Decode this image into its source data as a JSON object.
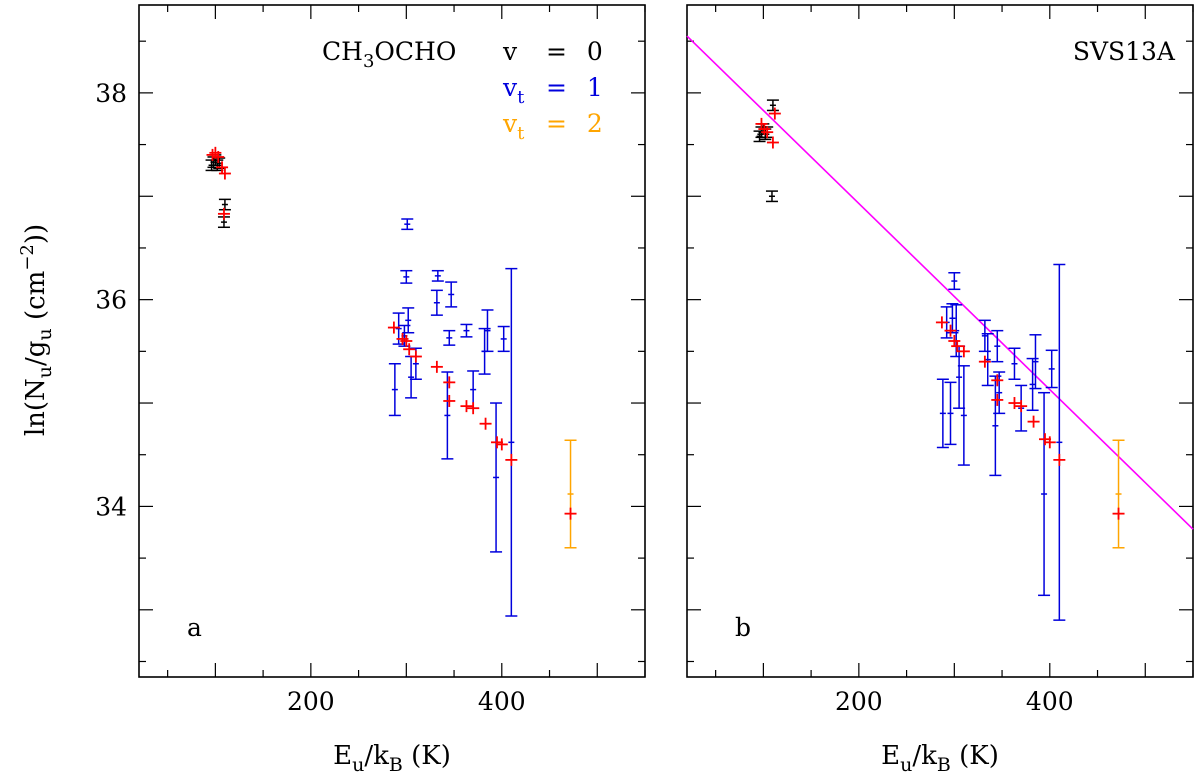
{
  "chart_data": [
    {
      "type": "scatter",
      "panel": "a",
      "panel_label": "a",
      "molecule_label": {
        "base": "CH",
        "sub1": "3",
        "rest": "OCHO"
      },
      "source_label": "",
      "xlabel": {
        "main": "E",
        "sub": "u",
        "slash": "/k",
        "sub2": "B",
        "unit": " (K)"
      },
      "ylabel": {
        "pre": "ln(N",
        "sub1": "u",
        "mid": "/g",
        "sub2": "u",
        "unit": " (cm",
        "sup": "−2",
        "post": "))"
      },
      "xlim": [
        20,
        550
      ],
      "ylim": [
        32.35,
        38.85
      ],
      "xticks": [
        200,
        400
      ],
      "yticks": [
        34,
        36,
        38
      ],
      "legend": [
        {
          "label": "v",
          "sub": "",
          "value": "= 0",
          "color": "#000000"
        },
        {
          "label": "v",
          "sub": "t",
          "value": "= 1",
          "color": "#0000dd"
        },
        {
          "label": "v",
          "sub": "t",
          "value": "= 2",
          "color": "#ffa500"
        }
      ],
      "series": [
        {
          "name": "v=0 observed",
          "color": "#000000",
          "points": [
            {
              "x": 96,
              "y": 37.3,
              "err": 0.05
            },
            {
              "x": 98,
              "y": 37.33,
              "err": 0.05
            },
            {
              "x": 100,
              "y": 37.35,
              "err": 0.05
            },
            {
              "x": 102,
              "y": 37.3,
              "err": 0.05
            },
            {
              "x": 104,
              "y": 37.32,
              "err": 0.05
            },
            {
              "x": 109,
              "y": 36.75,
              "err": 0.05
            },
            {
              "x": 110,
              "y": 36.92,
              "err": 0.05
            }
          ]
        },
        {
          "name": "vt=1 observed",
          "color": "#0000dd",
          "points": [
            {
              "x": 288,
              "y": 35.13,
              "err": 0.25
            },
            {
              "x": 292,
              "y": 35.72,
              "err": 0.15
            },
            {
              "x": 298,
              "y": 35.65,
              "err": 0.1
            },
            {
              "x": 300,
              "y": 36.22,
              "err": 0.06
            },
            {
              "x": 301,
              "y": 36.73,
              "err": 0.05
            },
            {
              "x": 302,
              "y": 35.8,
              "err": 0.12
            },
            {
              "x": 305,
              "y": 35.25,
              "err": 0.2
            },
            {
              "x": 310,
              "y": 35.38,
              "err": 0.15
            },
            {
              "x": 332,
              "y": 35.97,
              "err": 0.12
            },
            {
              "x": 333,
              "y": 36.23,
              "err": 0.05
            },
            {
              "x": 343,
              "y": 34.88,
              "err": 0.42
            },
            {
              "x": 345,
              "y": 35.63,
              "err": 0.07
            },
            {
              "x": 347,
              "y": 36.05,
              "err": 0.12
            },
            {
              "x": 363,
              "y": 35.7,
              "err": 0.06
            },
            {
              "x": 370,
              "y": 35.13,
              "err": 0.18
            },
            {
              "x": 382,
              "y": 35.5,
              "err": 0.22
            },
            {
              "x": 385,
              "y": 35.7,
              "err": 0.2
            },
            {
              "x": 394,
              "y": 34.28,
              "err": 0.72
            },
            {
              "x": 402,
              "y": 35.62,
              "err": 0.12
            },
            {
              "x": 410,
              "y": 34.62,
              "err": 1.68
            }
          ]
        },
        {
          "name": "vt=2 observed",
          "color": "#ffa500",
          "points": [
            {
              "x": 472,
              "y": 34.12,
              "err": 0.52
            }
          ]
        },
        {
          "name": "model",
          "color": "#ff0000",
          "points": [
            {
              "x": 97,
              "y": 37.4
            },
            {
              "x": 100,
              "y": 37.42
            },
            {
              "x": 103,
              "y": 37.38
            },
            {
              "x": 107,
              "y": 37.28
            },
            {
              "x": 110,
              "y": 37.22
            },
            {
              "x": 109,
              "y": 36.83
            },
            {
              "x": 287,
              "y": 35.73
            },
            {
              "x": 296,
              "y": 35.62
            },
            {
              "x": 300,
              "y": 35.6
            },
            {
              "x": 303,
              "y": 35.52
            },
            {
              "x": 310,
              "y": 35.45
            },
            {
              "x": 332,
              "y": 35.35
            },
            {
              "x": 345,
              "y": 35.2
            },
            {
              "x": 345,
              "y": 35.02
            },
            {
              "x": 363,
              "y": 34.97
            },
            {
              "x": 370,
              "y": 34.95
            },
            {
              "x": 383,
              "y": 34.8
            },
            {
              "x": 395,
              "y": 34.62
            },
            {
              "x": 400,
              "y": 34.6
            },
            {
              "x": 410,
              "y": 34.45
            },
            {
              "x": 472,
              "y": 33.93
            }
          ]
        }
      ],
      "fit_line": null
    },
    {
      "type": "scatter",
      "panel": "b",
      "panel_label": "b",
      "molecule_label": null,
      "source_label": "SVS13A",
      "xlabel": {
        "main": "E",
        "sub": "u",
        "slash": "/k",
        "sub2": "B",
        "unit": " (K)"
      },
      "xlim": [
        20,
        550
      ],
      "ylim": [
        32.35,
        38.85
      ],
      "xticks": [
        200,
        400
      ],
      "yticks": [
        34,
        36,
        38
      ],
      "series": [
        {
          "name": "v=0 observed",
          "color": "#000000",
          "points": [
            {
              "x": 96,
              "y": 37.58,
              "err": 0.05
            },
            {
              "x": 98,
              "y": 37.62,
              "err": 0.05
            },
            {
              "x": 100,
              "y": 37.65,
              "err": 0.05
            },
            {
              "x": 102,
              "y": 37.6,
              "err": 0.05
            },
            {
              "x": 104,
              "y": 37.62,
              "err": 0.05
            },
            {
              "x": 109,
              "y": 37.0,
              "err": 0.05
            },
            {
              "x": 110,
              "y": 37.88,
              "err": 0.05
            }
          ]
        },
        {
          "name": "vt=1 observed",
          "color": "#0000dd",
          "points": [
            {
              "x": 288,
              "y": 34.9,
              "err": 0.33
            },
            {
              "x": 292,
              "y": 35.78,
              "err": 0.15
            },
            {
              "x": 296,
              "y": 34.9,
              "err": 0.3
            },
            {
              "x": 298,
              "y": 35.82,
              "err": 0.14
            },
            {
              "x": 300,
              "y": 36.18,
              "err": 0.08
            },
            {
              "x": 302,
              "y": 35.7,
              "err": 0.25
            },
            {
              "x": 305,
              "y": 35.25,
              "err": 0.3
            },
            {
              "x": 310,
              "y": 34.88,
              "err": 0.48
            },
            {
              "x": 332,
              "y": 35.65,
              "err": 0.15
            },
            {
              "x": 335,
              "y": 35.42,
              "err": 0.25
            },
            {
              "x": 343,
              "y": 34.78,
              "err": 0.48
            },
            {
              "x": 345,
              "y": 35.55,
              "err": 0.15
            },
            {
              "x": 347,
              "y": 35.1,
              "err": 0.2
            },
            {
              "x": 363,
              "y": 35.38,
              "err": 0.15
            },
            {
              "x": 370,
              "y": 34.95,
              "err": 0.22
            },
            {
              "x": 382,
              "y": 35.18,
              "err": 0.25
            },
            {
              "x": 385,
              "y": 35.4,
              "err": 0.26
            },
            {
              "x": 394,
              "y": 34.12,
              "err": 0.98
            },
            {
              "x": 402,
              "y": 35.33,
              "err": 0.18
            },
            {
              "x": 410,
              "y": 34.62,
              "err": 1.72
            }
          ]
        },
        {
          "name": "vt=2 observed",
          "color": "#ffa500",
          "points": [
            {
              "x": 472,
              "y": 34.12,
              "err": 0.52
            }
          ]
        },
        {
          "name": "model",
          "color": "#ff0000",
          "points": [
            {
              "x": 98,
              "y": 37.7
            },
            {
              "x": 101,
              "y": 37.65
            },
            {
              "x": 104,
              "y": 37.62
            },
            {
              "x": 110,
              "y": 37.52
            },
            {
              "x": 112,
              "y": 37.8
            },
            {
              "x": 287,
              "y": 35.78
            },
            {
              "x": 296,
              "y": 35.7
            },
            {
              "x": 300,
              "y": 35.6
            },
            {
              "x": 303,
              "y": 35.55
            },
            {
              "x": 310,
              "y": 35.5
            },
            {
              "x": 332,
              "y": 35.4
            },
            {
              "x": 345,
              "y": 35.22
            },
            {
              "x": 345,
              "y": 35.03
            },
            {
              "x": 363,
              "y": 35.0
            },
            {
              "x": 370,
              "y": 34.97
            },
            {
              "x": 383,
              "y": 34.82
            },
            {
              "x": 395,
              "y": 34.65
            },
            {
              "x": 400,
              "y": 34.62
            },
            {
              "x": 410,
              "y": 34.45
            },
            {
              "x": 472,
              "y": 33.93
            }
          ]
        }
      ],
      "fit_line": {
        "color": "#ff00ff",
        "x": [
          20,
          550
        ],
        "y": [
          38.55,
          33.78
        ]
      }
    }
  ]
}
